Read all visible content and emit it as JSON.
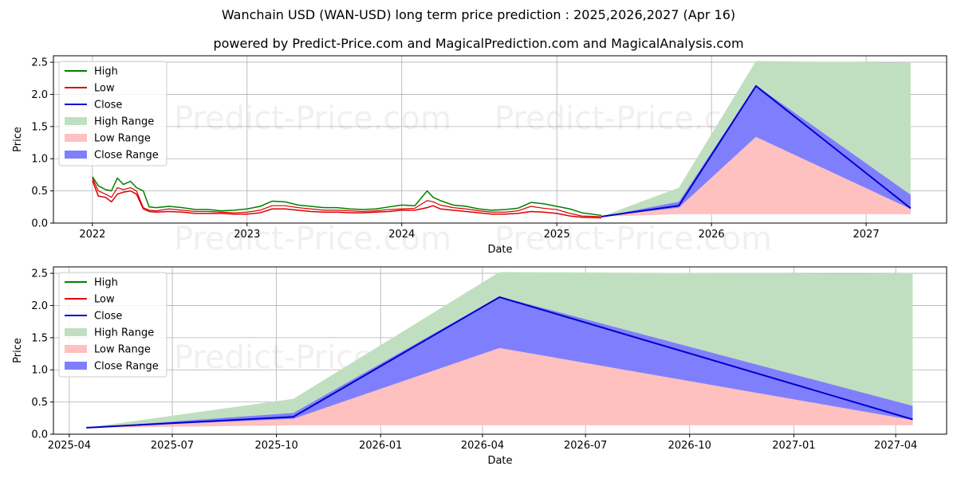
{
  "header": {
    "title": "Wanchain USD (WAN-USD) long term price prediction : 2025,2026,2027 (Apr 16)",
    "subtitle": "powered by Predict-Price.com and MagicalPrediction.com and MagicalAnalysis.com"
  },
  "watermark": "Predict-Price.com",
  "colors": {
    "high": "#008000",
    "low": "#dd0000",
    "close": "#0000cc",
    "high_range": "#c0dfc0",
    "low_range": "#ffc0c0",
    "close_range": "#7f7ffd"
  },
  "chart_data": [
    {
      "type": "line",
      "xlabel": "Date",
      "ylabel": "Price",
      "ylim": [
        0,
        2.6
      ],
      "y_ticks": [
        0.0,
        0.5,
        1.0,
        1.5,
        2.0,
        2.5
      ],
      "y_tick_labels": [
        "0.0",
        "0.5",
        "1.0",
        "1.5",
        "2.0",
        "2.5"
      ],
      "x_ticks": [
        "2022-01-01",
        "2023-01-01",
        "2024-01-01",
        "2025-01-01",
        "2026-01-01",
        "2027-01-01"
      ],
      "x_tick_labels": [
        "2022",
        "2023",
        "2024",
        "2025",
        "2026",
        "2027"
      ],
      "xlim": [
        "2021-10-01",
        "2027-07-10"
      ],
      "grid": true,
      "legend_position": "top-left",
      "legend": [
        "High",
        "Low",
        "Close",
        "High Range",
        "Low Range",
        "Close Range"
      ],
      "history": {
        "dates": [
          "2022-01-01",
          "2022-01-15",
          "2022-02-01",
          "2022-02-15",
          "2022-03-01",
          "2022-03-15",
          "2022-04-01",
          "2022-04-15",
          "2022-05-01",
          "2022-05-15",
          "2022-06-01",
          "2022-07-01",
          "2022-08-01",
          "2022-09-01",
          "2022-10-01",
          "2022-11-01",
          "2022-12-01",
          "2023-01-01",
          "2023-02-01",
          "2023-03-01",
          "2023-04-01",
          "2023-05-01",
          "2023-06-01",
          "2023-07-01",
          "2023-08-01",
          "2023-09-01",
          "2023-10-01",
          "2023-11-01",
          "2023-12-01",
          "2024-01-01",
          "2024-02-01",
          "2024-03-01",
          "2024-03-15",
          "2024-04-01",
          "2024-05-01",
          "2024-06-01",
          "2024-07-01",
          "2024-08-01",
          "2024-09-01",
          "2024-10-01",
          "2024-11-01",
          "2024-12-01",
          "2025-01-01",
          "2025-02-01",
          "2025-03-01",
          "2025-04-16"
        ],
        "high": [
          0.72,
          0.58,
          0.52,
          0.5,
          0.7,
          0.6,
          0.65,
          0.55,
          0.5,
          0.25,
          0.24,
          0.26,
          0.24,
          0.21,
          0.21,
          0.19,
          0.2,
          0.22,
          0.26,
          0.34,
          0.33,
          0.28,
          0.26,
          0.24,
          0.24,
          0.22,
          0.21,
          0.22,
          0.25,
          0.28,
          0.27,
          0.5,
          0.4,
          0.35,
          0.28,
          0.26,
          0.22,
          0.2,
          0.21,
          0.23,
          0.32,
          0.3,
          0.26,
          0.22,
          0.16,
          0.12
        ],
        "low": [
          0.66,
          0.42,
          0.4,
          0.33,
          0.45,
          0.48,
          0.5,
          0.45,
          0.22,
          0.18,
          0.17,
          0.18,
          0.17,
          0.15,
          0.15,
          0.15,
          0.14,
          0.14,
          0.16,
          0.22,
          0.22,
          0.2,
          0.18,
          0.17,
          0.17,
          0.16,
          0.16,
          0.17,
          0.18,
          0.2,
          0.2,
          0.24,
          0.27,
          0.22,
          0.2,
          0.18,
          0.16,
          0.14,
          0.14,
          0.15,
          0.18,
          0.17,
          0.15,
          0.11,
          0.09,
          0.08
        ],
        "close": [
          0.7,
          0.5,
          0.45,
          0.4,
          0.55,
          0.52,
          0.55,
          0.5,
          0.24,
          0.2,
          0.19,
          0.22,
          0.2,
          0.18,
          0.18,
          0.17,
          0.16,
          0.17,
          0.2,
          0.27,
          0.27,
          0.24,
          0.22,
          0.2,
          0.2,
          0.19,
          0.18,
          0.19,
          0.21,
          0.22,
          0.23,
          0.35,
          0.33,
          0.28,
          0.24,
          0.22,
          0.19,
          0.17,
          0.17,
          0.19,
          0.26,
          0.23,
          0.21,
          0.15,
          0.11,
          0.1
        ]
      },
      "prediction": {
        "dates": [
          "2025-04-16",
          "2025-10-16",
          "2026-04-16",
          "2027-04-16"
        ],
        "high_range_upper": [
          0.1,
          0.55,
          2.52,
          2.49
        ],
        "high_range_lower": [
          0.1,
          0.14,
          0.14,
          0.14
        ],
        "low_range_upper": [
          0.1,
          0.24,
          1.34,
          0.22
        ],
        "low_range_lower": [
          0.1,
          0.14,
          0.14,
          0.14
        ],
        "close_range_upper": [
          0.1,
          0.33,
          2.14,
          0.44
        ],
        "close_range_lower": [
          0.1,
          0.24,
          1.34,
          0.22
        ],
        "close": [
          0.1,
          0.27,
          2.13,
          0.23
        ]
      }
    },
    {
      "type": "line",
      "xlabel": "Date",
      "ylabel": "Price",
      "ylim": [
        0,
        2.6
      ],
      "y_ticks": [
        0.0,
        0.5,
        1.0,
        1.5,
        2.0,
        2.5
      ],
      "y_tick_labels": [
        "0.0",
        "0.5",
        "1.0",
        "1.5",
        "2.0",
        "2.5"
      ],
      "x_ticks": [
        "2025-04-01",
        "2025-07-01",
        "2025-10-01",
        "2026-01-01",
        "2026-04-01",
        "2026-07-01",
        "2026-10-01",
        "2027-01-01",
        "2027-04-01"
      ],
      "x_tick_labels": [
        "2025-04",
        "2025-07",
        "2025-10",
        "2026-01",
        "2026-04",
        "2026-07",
        "2026-10",
        "2027-01",
        "2027-04"
      ],
      "xlim": [
        "2025-03-18",
        "2027-05-16"
      ],
      "grid": true,
      "legend_position": "top-left",
      "legend": [
        "High",
        "Low",
        "Close",
        "High Range",
        "Low Range",
        "Close Range"
      ],
      "prediction": {
        "dates": [
          "2025-04-16",
          "2025-10-16",
          "2026-04-16",
          "2027-04-16"
        ],
        "high_range_upper": [
          0.1,
          0.55,
          2.52,
          2.49
        ],
        "high_range_lower": [
          0.1,
          0.14,
          0.14,
          0.14
        ],
        "low_range_upper": [
          0.1,
          0.24,
          1.34,
          0.22
        ],
        "low_range_lower": [
          0.1,
          0.14,
          0.14,
          0.14
        ],
        "close_range_upper": [
          0.1,
          0.33,
          2.14,
          0.44
        ],
        "close_range_lower": [
          0.1,
          0.24,
          1.34,
          0.22
        ],
        "close": [
          0.1,
          0.27,
          2.13,
          0.23
        ]
      }
    }
  ]
}
